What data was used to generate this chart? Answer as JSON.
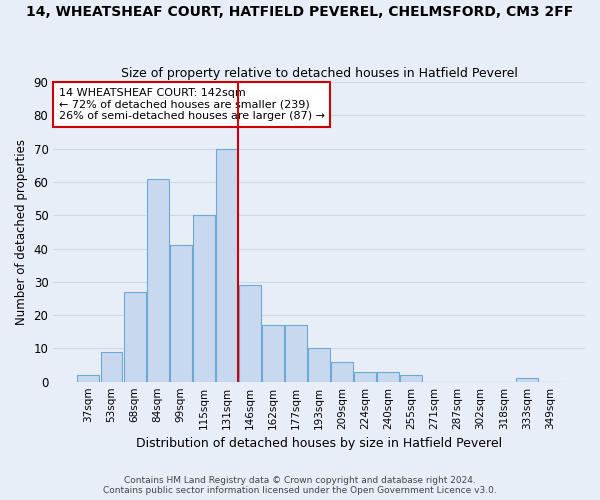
{
  "title": "14, WHEATSHEAF COURT, HATFIELD PEVEREL, CHELMSFORD, CM3 2FF",
  "subtitle": "Size of property relative to detached houses in Hatfield Peverel",
  "xlabel": "Distribution of detached houses by size in Hatfield Peverel",
  "ylabel": "Number of detached properties",
  "categories": [
    "37sqm",
    "53sqm",
    "68sqm",
    "84sqm",
    "99sqm",
    "115sqm",
    "131sqm",
    "146sqm",
    "162sqm",
    "177sqm",
    "193sqm",
    "209sqm",
    "224sqm",
    "240sqm",
    "255sqm",
    "271sqm",
    "287sqm",
    "302sqm",
    "318sqm",
    "333sqm",
    "349sqm"
  ],
  "values": [
    2,
    9,
    27,
    61,
    41,
    50,
    70,
    29,
    17,
    17,
    10,
    6,
    3,
    3,
    2,
    0,
    0,
    0,
    0,
    1,
    0
  ],
  "bar_color": "#c8d8ee",
  "bar_edge_color": "#6aaad4",
  "annotation_line1": "14 WHEATSHEAF COURT: 142sqm",
  "annotation_line2": "← 72% of detached houses are smaller (239)",
  "annotation_line3": "26% of semi-detached houses are larger (87) →",
  "annotation_box_color": "#ffffff",
  "annotation_box_edge_color": "#cc0000",
  "vline_color": "#cc0000",
  "vline_x": 6.5,
  "ylim": [
    0,
    90
  ],
  "yticks": [
    0,
    10,
    20,
    30,
    40,
    50,
    60,
    70,
    80,
    90
  ],
  "grid_color": "#d0d8e8",
  "bg_color": "#e8eef8",
  "footer1": "Contains HM Land Registry data © Crown copyright and database right 2024.",
  "footer2": "Contains public sector information licensed under the Open Government Licence v3.0."
}
